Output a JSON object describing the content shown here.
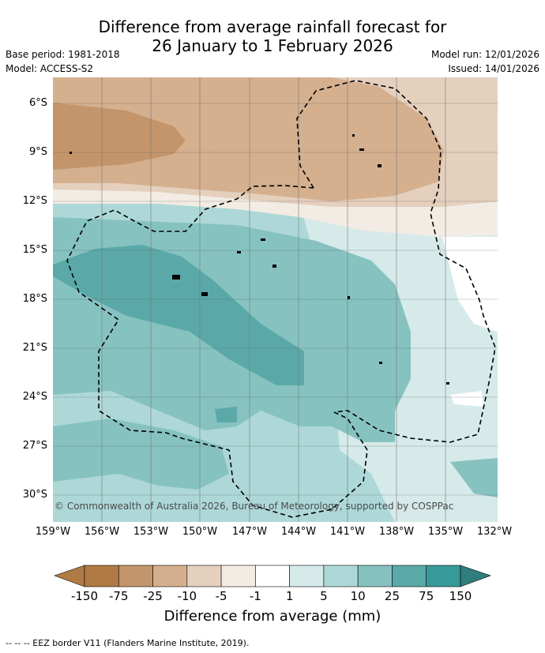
{
  "title_line1": "Difference from average rainfall forecast for",
  "title_line2": "26 January to 1 February 2026",
  "base_period": "Base period: 1981-2018",
  "model": "Model: ACCESS-S2",
  "model_run": "Model run: 12/01/2026",
  "issued": "Issued: 14/01/2026",
  "latitudes": [
    "6°S",
    "9°S",
    "12°S",
    "15°S",
    "18°S",
    "21°S",
    "24°S",
    "27°S",
    "30°S"
  ],
  "longitudes": [
    "159°W",
    "156°W",
    "153°W",
    "150°W",
    "147°W",
    "144°W",
    "141°W",
    "138°W",
    "135°W",
    "132°W"
  ],
  "copyright": "© Commonwealth of Australia 2026, Bureau of Meteorology, supported by COSPPac",
  "colorbar": {
    "labels": [
      "-150",
      "-75",
      "-25",
      "-10",
      "-5",
      "-1",
      "1",
      "5",
      "10",
      "25",
      "75",
      "150"
    ],
    "colors": [
      "#b07a44",
      "#c4956b",
      "#d4b08f",
      "#e5cfbd",
      "#f2ece4",
      "#ffffff",
      "#d6eaea",
      "#add8d7",
      "#86c2c0",
      "#5aa9a8",
      "#37999a"
    ],
    "title": "Difference from average (mm)"
  },
  "footer": "-- -- -- EEZ border V11 (Flanders Marine Institute, 2019)."
}
